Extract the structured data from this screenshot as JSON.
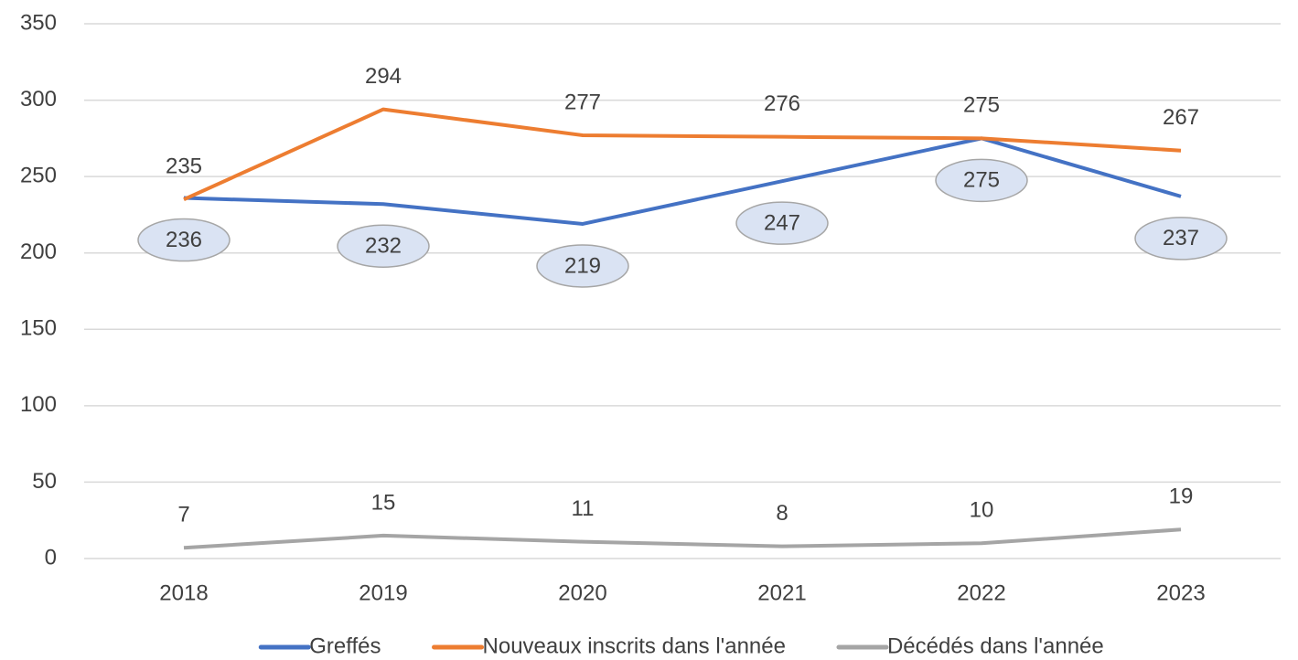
{
  "chart_data": {
    "type": "line",
    "categories": [
      "2018",
      "2019",
      "2020",
      "2021",
      "2022",
      "2023"
    ],
    "series": [
      {
        "name": "Greffés",
        "color": "#4472c4",
        "values": [
          236,
          232,
          219,
          247,
          275,
          237
        ]
      },
      {
        "name": "Nouveaux inscrits dans l'année",
        "color": "#ed7d31",
        "values": [
          235,
          294,
          277,
          276,
          275,
          267
        ]
      },
      {
        "name": "Décédés dans l'année",
        "color": "#a5a5a5",
        "values": [
          7,
          15,
          11,
          8,
          10,
          19
        ]
      }
    ],
    "ylim": [
      0,
      350
    ],
    "yticks": [
      0,
      50,
      100,
      150,
      200,
      250,
      300,
      350
    ],
    "grid": true,
    "legend": "bottom"
  }
}
